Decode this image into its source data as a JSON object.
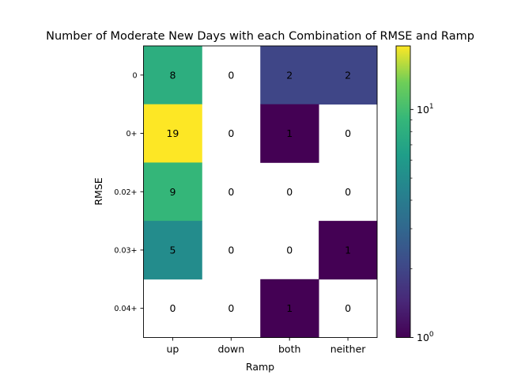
{
  "chart_data": {
    "type": "heatmap",
    "title": "Number of Moderate New Days with each Combination of RMSE and Ramp",
    "xlabel": "Ramp",
    "ylabel": "RMSE",
    "x_categories": [
      "up",
      "down",
      "both",
      "neither"
    ],
    "y_categories": [
      "0",
      "0+",
      "0.02+",
      "0.03+",
      "0.04+"
    ],
    "values": [
      [
        8,
        0,
        2,
        2
      ],
      [
        19,
        0,
        1,
        0
      ],
      [
        9,
        0,
        0,
        0
      ],
      [
        5,
        0,
        0,
        1
      ],
      [
        0,
        0,
        1,
        0
      ]
    ],
    "color_scale": "log",
    "colormap": "viridis",
    "zero_cells_blank": true,
    "colorbar": {
      "range": [
        1,
        19
      ],
      "major_ticks": [
        {
          "value": 1,
          "base": "10",
          "exp": "0"
        },
        {
          "value": 10,
          "base": "10",
          "exp": "1"
        }
      ],
      "minor_ticks": [
        2,
        3,
        4,
        5,
        6,
        7,
        8,
        9
      ]
    }
  }
}
